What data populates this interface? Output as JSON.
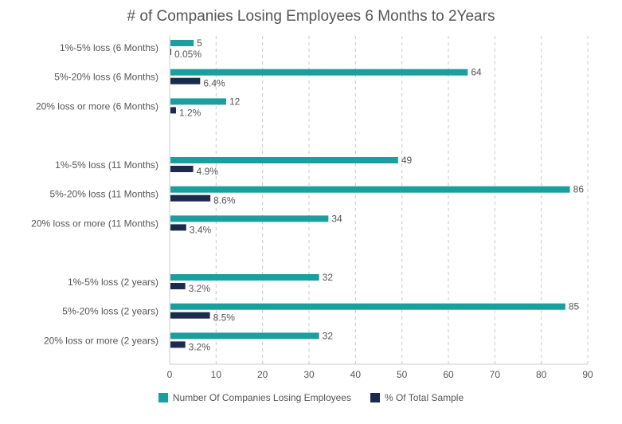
{
  "chart_data": {
    "type": "bar",
    "orientation": "horizontal",
    "title": "# of Companies Losing Employees 6 Months to 2Years",
    "xlim": [
      0,
      90
    ],
    "xticks": [
      0,
      10,
      20,
      30,
      40,
      50,
      60,
      70,
      80,
      90
    ],
    "grid": "vertical dashed",
    "legend_position": "bottom",
    "categories": [
      "1%-5% loss (6 Months)",
      "5%-20% loss (6 Months)",
      "20% loss or more (6 Months)",
      "1%-5% loss (11 Months)",
      "5%-20% loss (11 Months)",
      "20% loss or more (11 Months)",
      "1%-5% loss (2 years)",
      "5%-20% loss (2 years)",
      "20% loss or more (2 years)"
    ],
    "series": [
      {
        "name": "Number Of Companies Losing Employees",
        "color": "#1a9e9e",
        "values": [
          5,
          64,
          12,
          49,
          86,
          34,
          32,
          85,
          32
        ],
        "labels": [
          "5",
          "64",
          "12",
          "49",
          "86",
          "34",
          "32",
          "85",
          "32"
        ]
      },
      {
        "name": "% Of Total Sample",
        "color": "#1c2a4e",
        "values": [
          0.05,
          6.4,
          1.2,
          4.9,
          8.6,
          3.4,
          3.2,
          8.5,
          3.2
        ],
        "labels": [
          "0.05%",
          "6.4%",
          "1.2%",
          "4.9%",
          "8.6%",
          "3.4%",
          "3.2%",
          "8.5%",
          "3.2%"
        ]
      }
    ]
  }
}
